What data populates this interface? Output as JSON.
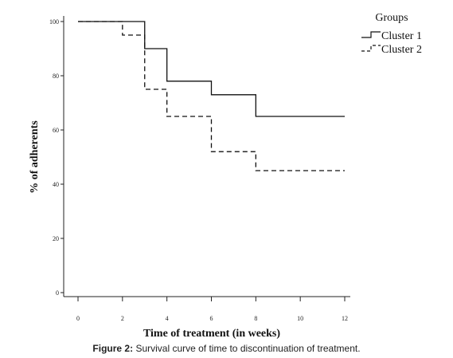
{
  "chart_data": {
    "type": "line",
    "step": true,
    "xlabel": "Time of treatment (in weeks)",
    "ylabel": "% of adherents",
    "xlim": [
      0,
      12
    ],
    "ylim": [
      0,
      100
    ],
    "xticks": [
      0,
      2,
      4,
      6,
      8,
      10,
      12
    ],
    "yticks": [
      0,
      20,
      40,
      60,
      80,
      100
    ],
    "legend": {
      "title": "Groups",
      "position": "top-right"
    },
    "series": [
      {
        "name": "Cluster 1",
        "line_style": "solid",
        "x": [
          0,
          3,
          4,
          6,
          8,
          12
        ],
        "y": [
          100,
          90,
          78,
          73,
          65,
          65
        ]
      },
      {
        "name": "Cluster 2",
        "line_style": "dashed",
        "x": [
          0,
          2,
          3,
          4,
          6,
          8,
          12
        ],
        "y": [
          100,
          95,
          75,
          65,
          52,
          45,
          45
        ]
      }
    ]
  },
  "caption": {
    "label": "Figure 2:",
    "text": "Survival curve of time to discontinuation of treatment."
  }
}
